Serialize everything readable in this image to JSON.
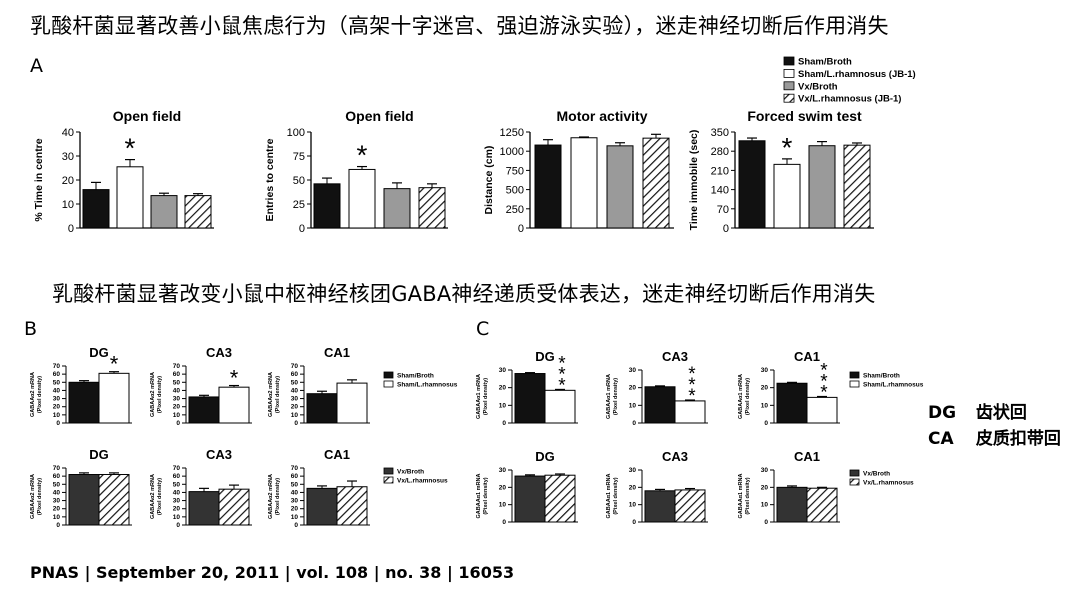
{
  "titles": {
    "top": "乳酸杆菌显著改善小鼠焦虑行为（高架十字迷宫、强迫游泳实验），迷走神经切断后作用消失",
    "middle": "乳酸杆菌显著改变小鼠中枢神经核团GABA神经递质受体表达，迷走神经切断后作用消失"
  },
  "panel_labels": {
    "a": "A",
    "b": "B",
    "c": "C"
  },
  "citation": "PNAS | September 20, 2011 | vol. 108 | no. 38 | 16053",
  "glossary": [
    {
      "abbr": "DG",
      "meaning": "齿状回"
    },
    {
      "abbr": "CA",
      "meaning": "皮质扣带回"
    }
  ],
  "colors": {
    "black": "#111111",
    "white": "#ffffff",
    "gray": "#9a9a9a",
    "dark_gray": "#333333"
  },
  "chart_data": [
    {
      "type": "bar",
      "title": "Open field",
      "ylabel": "% Time in centre",
      "ylim": [
        0,
        40
      ],
      "yticks": [
        "0",
        "10",
        "20",
        "30",
        "40"
      ],
      "values": [
        16,
        25.5,
        13.5,
        13.5
      ],
      "errors": [
        3,
        3,
        1,
        0.8
      ],
      "annotations": [
        {
          "bar": 1,
          "text": "*"
        }
      ]
    },
    {
      "type": "bar",
      "title": "Open field",
      "ylabel": "Entries to centre",
      "ylim": [
        0,
        100
      ],
      "yticks": [
        "0",
        "25",
        "50",
        "75",
        "100"
      ],
      "values": [
        46,
        61,
        41,
        42
      ],
      "errors": [
        6,
        3,
        6,
        4
      ],
      "annotations": [
        {
          "bar": 1,
          "text": "*"
        }
      ]
    },
    {
      "type": "bar",
      "title": "Motor activity",
      "ylabel": "Distance (cm)",
      "ylim": [
        0,
        1250
      ],
      "yticks": [
        "0",
        "250",
        "500",
        "750",
        "1000",
        "1250"
      ],
      "values": [
        1080,
        1175,
        1070,
        1170
      ],
      "errors": [
        70,
        10,
        40,
        50
      ],
      "annotations": []
    },
    {
      "type": "bar",
      "title": "Forced swim test",
      "ylabel": "Time immobile (sec)",
      "ylim": [
        0,
        350
      ],
      "ymin_axis": 0,
      "yticks": [
        "0",
        "70",
        "140",
        "210",
        "280",
        "350"
      ],
      "values": [
        318,
        232,
        300,
        302
      ],
      "errors": [
        10,
        20,
        15,
        8
      ],
      "annotations": [
        {
          "bar": 1,
          "text": "*"
        }
      ]
    },
    {
      "type": "bar",
      "title": "DG",
      "ylabel": "GABAAα2 mRNA (Pixel density)",
      "ylim": [
        0,
        70
      ],
      "yticks": [
        "0",
        "10",
        "20",
        "30",
        "40",
        "50",
        "60",
        "70"
      ],
      "values": [
        50,
        61
      ],
      "errors": [
        2,
        2
      ],
      "annotations": [
        {
          "bar": 1,
          "text": "*"
        }
      ]
    },
    {
      "type": "bar",
      "title": "CA3",
      "ylabel": "GABAAα2 mRNA (Pixel density)",
      "ylim": [
        0,
        70
      ],
      "yticks": [
        "0",
        "10",
        "20",
        "30",
        "40",
        "50",
        "60",
        "70"
      ],
      "values": [
        32,
        44
      ],
      "errors": [
        2,
        2
      ],
      "annotations": [
        {
          "bar": 1,
          "text": "*"
        }
      ]
    },
    {
      "type": "bar",
      "title": "CA1",
      "ylabel": "GABAAα2 mRNA (Pixel density)",
      "ylim": [
        0,
        70
      ],
      "yticks": [
        "0",
        "10",
        "20",
        "30",
        "40",
        "50",
        "60",
        "70"
      ],
      "values": [
        36,
        49
      ],
      "errors": [
        3,
        4
      ],
      "annotations": []
    },
    {
      "type": "bar",
      "title": "DG",
      "ylabel": "GABAAα2 mRNA (Pixel density)",
      "ylim": [
        0,
        70
      ],
      "yticks": [
        "0",
        "10",
        "20",
        "30",
        "40",
        "50",
        "60",
        "70"
      ],
      "values": [
        62,
        62
      ],
      "errors": [
        2,
        2
      ],
      "annotations": []
    },
    {
      "type": "bar",
      "title": "CA3",
      "ylabel": "GABAAα2 mRNA (Pixel density)",
      "ylim": [
        0,
        70
      ],
      "yticks": [
        "0",
        "10",
        "20",
        "30",
        "40",
        "50",
        "60",
        "70"
      ],
      "values": [
        41,
        44
      ],
      "errors": [
        4,
        5
      ],
      "annotations": []
    },
    {
      "type": "bar",
      "title": "CA1",
      "ylabel": "GABAAα2 mRNA (Pixel density)",
      "ylim": [
        0,
        70
      ],
      "yticks": [
        "0",
        "10",
        "20",
        "30",
        "40",
        "50",
        "60",
        "70"
      ],
      "values": [
        45,
        47
      ],
      "errors": [
        3,
        7
      ],
      "annotations": []
    },
    {
      "type": "bar",
      "title": "DG",
      "ylabel": "GABAAα1 mRNA (Pixel density)",
      "ylim": [
        0,
        30
      ],
      "yticks": [
        "0",
        "10",
        "20",
        "30"
      ],
      "values": [
        28,
        18.5
      ],
      "errors": [
        0.5,
        0.5
      ],
      "annotations": [
        {
          "bar": 1,
          "text": "***"
        }
      ]
    },
    {
      "type": "bar",
      "title": "CA3",
      "ylabel": "GABAAα1 mRNA (Pixel density)",
      "ylim": [
        0,
        30
      ],
      "yticks": [
        "0",
        "10",
        "20",
        "30"
      ],
      "values": [
        20.5,
        12.5
      ],
      "errors": [
        0.5,
        0.5
      ],
      "annotations": [
        {
          "bar": 1,
          "text": "***"
        }
      ]
    },
    {
      "type": "bar",
      "title": "CA1",
      "ylabel": "GABAAα1 mRNA (Pixel density)",
      "ylim": [
        0,
        30
      ],
      "yticks": [
        "0",
        "10",
        "20",
        "30"
      ],
      "values": [
        22.5,
        14.5
      ],
      "errors": [
        0.5,
        0.5
      ],
      "annotations": [
        {
          "bar": 1,
          "text": "***"
        }
      ]
    },
    {
      "type": "bar",
      "title": "DG",
      "ylabel": "GABAAα1 mRNA (Pixel density)",
      "ylim": [
        0,
        30
      ],
      "yticks": [
        "0",
        "10",
        "20",
        "30"
      ],
      "values": [
        26.5,
        27
      ],
      "errors": [
        0.7,
        0.7
      ],
      "annotations": []
    },
    {
      "type": "bar",
      "title": "CA3",
      "ylabel": "GABAAα1 mRNA (Pixel density)",
      "ylim": [
        0,
        30
      ],
      "yticks": [
        "0",
        "10",
        "20",
        "30"
      ],
      "values": [
        18,
        18.5
      ],
      "errors": [
        0.8,
        0.8
      ],
      "annotations": []
    },
    {
      "type": "bar",
      "title": "CA1",
      "ylabel": "GABAAα1 mRNA (Pixel density)",
      "ylim": [
        0,
        30
      ],
      "yticks": [
        "0",
        "10",
        "20",
        "30"
      ],
      "values": [
        20,
        19.5
      ],
      "errors": [
        0.8,
        0.5
      ],
      "annotations": []
    }
  ],
  "legends": {
    "a": [
      {
        "label": "Sham/Broth",
        "style": "black"
      },
      {
        "label": "Sham/L.rhamnosus (JB-1)",
        "style": "white"
      },
      {
        "label": "Vx/Broth",
        "style": "gray"
      },
      {
        "label": "Vx/L.rhamnosus (JB-1)",
        "style": "hatch"
      }
    ],
    "sham": [
      {
        "label": "Sham/Broth",
        "style": "black"
      },
      {
        "label": "Sham/L.rhamnosus",
        "style": "white"
      }
    ],
    "vx": [
      {
        "label": "Vx/Broth",
        "style": "dark"
      },
      {
        "label": "Vx/L.rhamnosus",
        "style": "hatch"
      }
    ]
  }
}
